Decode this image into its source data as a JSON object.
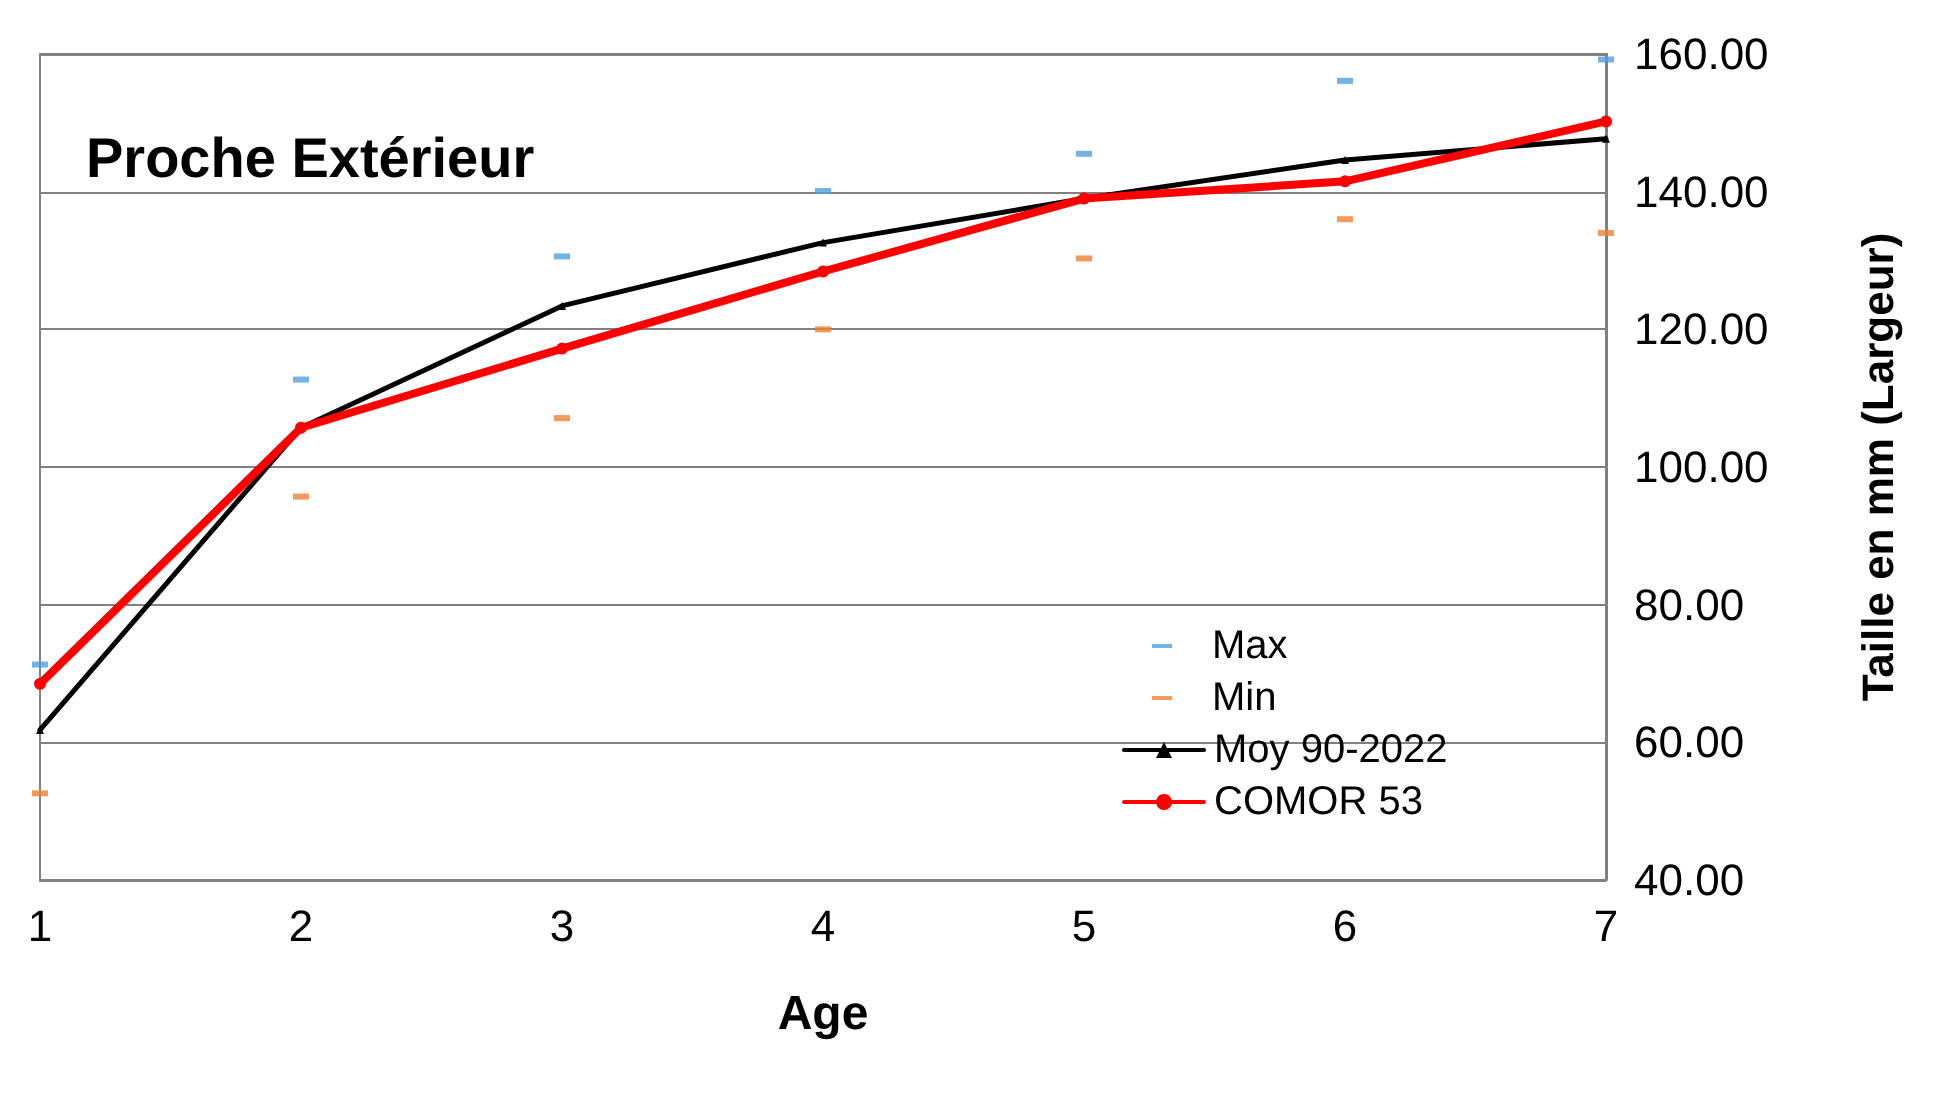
{
  "chart_data": {
    "type": "line",
    "title": "Proche Extérieur",
    "xlabel": "Age",
    "ylabel": "Taille en mm (Largeur)",
    "categories": [
      "1",
      "2",
      "3",
      "4",
      "5",
      "6",
      "7"
    ],
    "series": [
      {
        "name": "Max",
        "type": "scatter",
        "color": "#4f9fe0",
        "values": [
          71.3,
          112.7,
          130.6,
          140.1,
          145.5,
          156.1,
          159.2
        ]
      },
      {
        "name": "Min",
        "type": "scatter",
        "color": "#f08030",
        "values": [
          52.6,
          95.7,
          107.1,
          120.0,
          130.3,
          136.0,
          134.0
        ]
      },
      {
        "name": "Moy 90-2022",
        "color": "#000000",
        "marker": "triangle",
        "values": [
          61.8,
          105.7,
          123.4,
          132.6,
          139.0,
          144.6,
          147.7
        ]
      },
      {
        "name": "COMOR 53",
        "color": "#ff0000",
        "marker": "circle",
        "values": [
          68.5,
          105.7,
          117.2,
          128.4,
          139.0,
          141.5,
          150.2
        ]
      }
    ],
    "ylim": [
      40,
      160
    ],
    "yticks": [
      {
        "value": 40,
        "label": "40.00"
      },
      {
        "value": 60,
        "label": "60.00"
      },
      {
        "value": 80,
        "label": "80.00"
      },
      {
        "value": 100,
        "label": "100.00"
      },
      {
        "value": 120,
        "label": "120.00"
      },
      {
        "value": 140,
        "label": "140.00"
      },
      {
        "value": 160,
        "label": "160.00"
      }
    ],
    "grid": "y",
    "legend": "bottom right"
  }
}
